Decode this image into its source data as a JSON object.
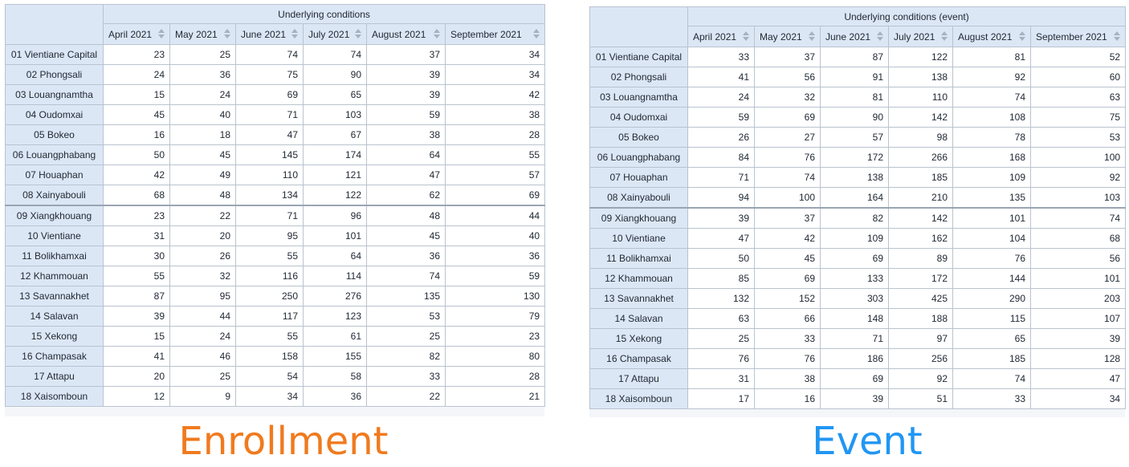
{
  "months": [
    "April 2021",
    "May 2021",
    "June 2021",
    "July 2021",
    "August 2021",
    "September 2021"
  ],
  "rows": [
    "01 Vientiane Capital",
    "02 Phongsali",
    "03 Louangnamtha",
    "04 Oudomxai",
    "05 Bokeo",
    "06 Louangphabang",
    "07 Houaphan",
    "08 Xainyabouli",
    "09 Xiangkhouang",
    "10 Vientiane",
    "11 Bolikhamxai",
    "12 Khammouan",
    "13 Savannakhet",
    "14 Salavan",
    "15 Xekong",
    "16 Champasak",
    "17 Attapu",
    "18 Xaisomboun"
  ],
  "tables": [
    {
      "group_label": "Underlying conditions",
      "caption": "Enrollment",
      "caption_color": "#f07a1e",
      "values": [
        [
          23,
          25,
          74,
          74,
          37,
          34
        ],
        [
          24,
          36,
          75,
          90,
          39,
          34
        ],
        [
          15,
          24,
          69,
          65,
          39,
          42
        ],
        [
          45,
          40,
          71,
          103,
          59,
          38
        ],
        [
          16,
          18,
          47,
          67,
          38,
          28
        ],
        [
          50,
          45,
          145,
          174,
          64,
          55
        ],
        [
          42,
          49,
          110,
          121,
          47,
          57
        ],
        [
          68,
          48,
          134,
          122,
          62,
          69
        ],
        [
          23,
          22,
          71,
          96,
          48,
          44
        ],
        [
          31,
          20,
          95,
          101,
          45,
          40
        ],
        [
          30,
          26,
          55,
          64,
          36,
          36
        ],
        [
          55,
          32,
          116,
          114,
          74,
          59
        ],
        [
          87,
          95,
          250,
          276,
          135,
          130
        ],
        [
          39,
          44,
          117,
          123,
          53,
          79
        ],
        [
          15,
          24,
          55,
          61,
          25,
          23
        ],
        [
          41,
          46,
          158,
          155,
          82,
          80
        ],
        [
          20,
          25,
          54,
          58,
          33,
          28
        ],
        [
          12,
          9,
          34,
          36,
          22,
          21
        ]
      ]
    },
    {
      "group_label": "Underlying conditions (event)",
      "caption": "Event",
      "caption_color": "#2196f3",
      "values": [
        [
          33,
          37,
          87,
          122,
          81,
          52
        ],
        [
          41,
          56,
          91,
          138,
          92,
          60
        ],
        [
          24,
          32,
          81,
          110,
          74,
          63
        ],
        [
          59,
          69,
          90,
          142,
          108,
          75
        ],
        [
          26,
          27,
          57,
          98,
          78,
          53
        ],
        [
          84,
          76,
          172,
          266,
          168,
          100
        ],
        [
          71,
          74,
          138,
          185,
          109,
          92
        ],
        [
          94,
          100,
          164,
          210,
          135,
          103
        ],
        [
          39,
          37,
          82,
          142,
          101,
          74
        ],
        [
          47,
          42,
          109,
          162,
          104,
          68
        ],
        [
          50,
          45,
          69,
          89,
          76,
          56
        ],
        [
          85,
          69,
          133,
          172,
          144,
          101
        ],
        [
          132,
          152,
          303,
          425,
          290,
          203
        ],
        [
          63,
          66,
          148,
          188,
          115,
          107
        ],
        [
          25,
          33,
          71,
          97,
          65,
          39
        ],
        [
          76,
          76,
          186,
          256,
          185,
          128
        ],
        [
          31,
          38,
          69,
          92,
          74,
          47
        ],
        [
          17,
          16,
          39,
          51,
          33,
          34
        ]
      ]
    }
  ]
}
